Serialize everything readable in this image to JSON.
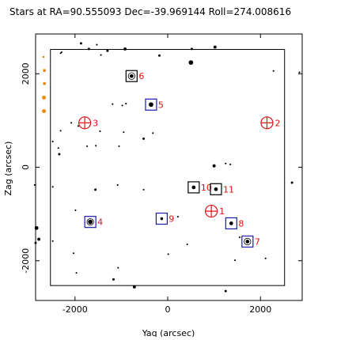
{
  "chart_data": {
    "type": "scatter",
    "title": "Stars at RA=90.555093 Dec=-39.969144 Roll=274.008616",
    "xlabel": "Yaq (arcsec)",
    "ylabel": "Zag (arcsec)",
    "xlim": [
      -2850,
      2900
    ],
    "ylim": [
      -2850,
      2850
    ],
    "x_ticks": [
      -2000,
      0,
      2000
    ],
    "y_ticks": [
      -2000,
      0,
      2000
    ],
    "colors": {
      "axes": "#000000",
      "guide": "#0000aa",
      "acq": "#1a1ab0",
      "fid": "#dd1111",
      "orange": "#ee8800"
    },
    "ccd_boundary": [
      [
        -2530,
        -2530
      ],
      [
        2520,
        -2530
      ],
      [
        2520,
        2520
      ],
      [
        -2530,
        2520
      ]
    ],
    "fids": [
      {
        "label": "1",
        "x": 940,
        "y": -940
      },
      {
        "label": "2",
        "x": 2140,
        "y": 950
      },
      {
        "label": "3",
        "x": -1790,
        "y": 950
      }
    ],
    "catalog_stars": [
      {
        "label": "4",
        "x": -1670,
        "y": -1170,
        "style": "blue_square_circle",
        "size": 4
      },
      {
        "label": "5",
        "x": -360,
        "y": 1340,
        "style": "blue_square",
        "size": 4
      },
      {
        "label": "6",
        "x": -780,
        "y": 1950,
        "style": "black_square_circle",
        "size": 3
      },
      {
        "label": "7",
        "x": 1720,
        "y": -1590,
        "style": "blue_square_circle",
        "size": 3
      },
      {
        "label": "8",
        "x": 1370,
        "y": -1200,
        "style": "blue_square",
        "size": 3
      },
      {
        "label": "9",
        "x": -130,
        "y": -1100,
        "style": "blue_square",
        "size": 2
      },
      {
        "label": "10",
        "x": 560,
        "y": -430,
        "style": "black_square",
        "size": 3
      },
      {
        "label": "11",
        "x": 1040,
        "y": -470,
        "style": "black_square",
        "size": 3
      }
    ],
    "field_stars": [
      [
        -2310,
        2440,
        1
      ],
      [
        -2290,
        2460,
        1
      ],
      [
        -1870,
        2650,
        2
      ],
      [
        -1700,
        2530,
        2
      ],
      [
        -1530,
        2620,
        1
      ],
      [
        -1440,
        2400,
        1
      ],
      [
        -1300,
        2490,
        2
      ],
      [
        -920,
        2530,
        3
      ],
      [
        -180,
        2390,
        2
      ],
      [
        520,
        2530,
        2
      ],
      [
        1020,
        2570,
        3
      ],
      [
        500,
        2240,
        5
      ],
      [
        2280,
        2060,
        1
      ],
      [
        -1190,
        1350,
        1
      ],
      [
        -980,
        1320,
        1
      ],
      [
        -900,
        1360,
        1
      ],
      [
        -2080,
        950,
        1
      ],
      [
        -2310,
        780,
        1
      ],
      [
        -1930,
        880,
        1
      ],
      [
        -1460,
        770,
        1
      ],
      [
        -950,
        750,
        1
      ],
      [
        -320,
        730,
        1
      ],
      [
        -2480,
        550,
        1
      ],
      [
        -2360,
        410,
        1
      ],
      [
        -2340,
        280,
        2
      ],
      [
        -1740,
        450,
        1
      ],
      [
        -1550,
        460,
        1
      ],
      [
        -1050,
        450,
        1
      ],
      [
        -520,
        610,
        2
      ],
      [
        1000,
        30,
        3
      ],
      [
        1350,
        60,
        1
      ],
      [
        1250,
        80,
        1
      ],
      [
        -2480,
        -420,
        1
      ],
      [
        -1560,
        -480,
        2
      ],
      [
        -1080,
        -380,
        1
      ],
      [
        -520,
        -480,
        1
      ],
      [
        -1990,
        -920,
        1
      ],
      [
        -2480,
        -1580,
        1
      ],
      [
        -2030,
        -1840,
        1
      ],
      [
        -1970,
        -2260,
        1
      ],
      [
        -1070,
        -2150,
        1
      ],
      [
        -1170,
        -2400,
        2
      ],
      [
        -720,
        -2560,
        3
      ],
      [
        10,
        -1860,
        1
      ],
      [
        220,
        -1060,
        1
      ],
      [
        420,
        -1650,
        1
      ],
      [
        1250,
        -2650,
        2
      ],
      [
        1450,
        -1990,
        1
      ],
      [
        1550,
        -1500,
        1
      ],
      [
        2110,
        -1950,
        1
      ],
      [
        -2830,
        -1300,
        4
      ],
      [
        -2780,
        -1540,
        3
      ],
      [
        -2850,
        -1620,
        2
      ],
      [
        -2870,
        -380,
        1
      ],
      [
        2680,
        -330,
        2
      ],
      [
        2840,
        2030,
        1
      ]
    ],
    "orange_stars": [
      [
        -2680,
        2360,
        1
      ],
      [
        -2660,
        2070,
        2
      ],
      [
        -2660,
        1790,
        2
      ],
      [
        -2670,
        1490,
        3
      ],
      [
        -2670,
        1200,
        3
      ]
    ]
  }
}
